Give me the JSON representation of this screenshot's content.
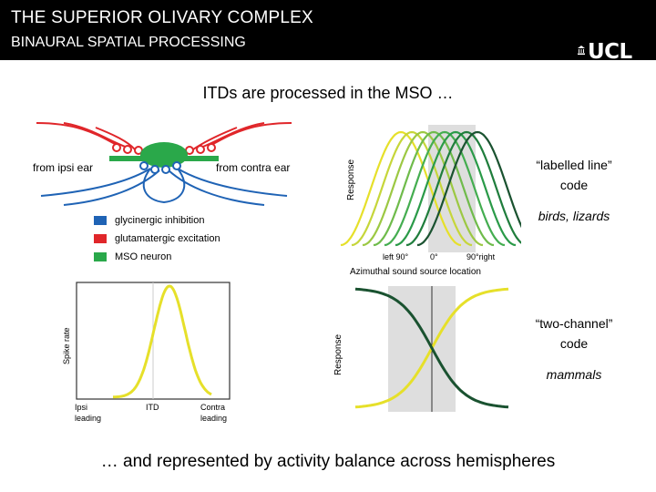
{
  "header": {
    "title": "THE SUPERIOR OLIVARY COMPLEX",
    "subtitle": "BINAURAL SPATIAL PROCESSING",
    "logo": "UCL"
  },
  "slide_title": "ITDs are processed in the MSO …",
  "neuron_diagram": {
    "label_left": "from ipsi ear",
    "label_right": "from contra ear",
    "legend": [
      {
        "label": "glycinergic inhibition",
        "color": "#1f63b5"
      },
      {
        "label": "glutamatergic excitation",
        "color": "#e0262a"
      },
      {
        "label": "MSO neuron",
        "color": "#2aa84a"
      }
    ]
  },
  "chart_data": [
    {
      "type": "line",
      "ylabel": "Spike rate",
      "xtick_labels": [
        "Ipsi\nleading",
        "ITD",
        "Contra\nleading"
      ],
      "series": [
        {
          "color": "#e6e02a",
          "shape": "gaussian peak at ITD"
        }
      ]
    },
    {
      "type": "line",
      "ylabel": "Response",
      "xlabel": "Azimuthal sound source location",
      "xtick_labels": [
        "left 90°",
        "0°",
        "90°right"
      ],
      "series_count": 8,
      "colors": [
        "#e6e02a",
        "#c6d63a",
        "#9cc843",
        "#6fbb4b",
        "#44ad50",
        "#2a9a48",
        "#1f7d3c",
        "#1a5230"
      ]
    },
    {
      "type": "line",
      "ylabel": "Response",
      "series": [
        {
          "color": "#e6e02a",
          "shape": "rising sigmoid"
        },
        {
          "color": "#1a5230",
          "shape": "falling sigmoid"
        }
      ]
    }
  ],
  "captions": {
    "labelled_line_1": "“labelled line”",
    "labelled_line_2": "code",
    "birds": "birds, lizards",
    "two_channel_1": "“two-channel”",
    "two_channel_2": "code",
    "mammals": "mammals"
  },
  "footer": "… and represented by activity balance across hemispheres"
}
